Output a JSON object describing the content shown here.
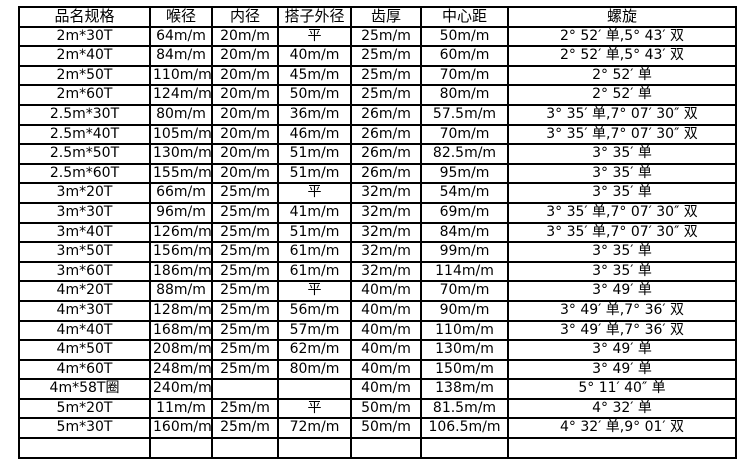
{
  "table": {
    "headers": [
      "品名规格",
      "喉径",
      "内径",
      "搭子外径",
      "齿厚",
      "中心距",
      "螺旋"
    ],
    "rows": [
      [
        "2m*30T",
        "64m/m",
        "20m/m",
        "平",
        "25m/m",
        "50m/m",
        "2° 52′ 单,5° 43′ 双"
      ],
      [
        "2m*40T",
        "84m/m",
        "20m/m",
        "40m/m",
        "25m/m",
        "60m/m",
        "2° 52′ 单,5° 43′ 双"
      ],
      [
        "2m*50T",
        "110m/m",
        "20m/m",
        "45m/m",
        "25m/m",
        "70m/m",
        "2° 52′ 单"
      ],
      [
        "2m*60T",
        "124m/m",
        "20m/m",
        "50m/m",
        "25m/m",
        "80m/m",
        "2° 52′ 单"
      ],
      [
        "2.5m*30T",
        "80m/m",
        "20m/m",
        "36m/m",
        "26m/m",
        "57.5m/m",
        "3° 35′ 单,7° 07′ 30″ 双"
      ],
      [
        "2.5m*40T",
        "105m/m",
        "20m/m",
        "46m/m",
        "26m/m",
        "70m/m",
        "3° 35′ 单,7° 07′ 30″ 双"
      ],
      [
        "2.5m*50T",
        "130m/m",
        "20m/m",
        "51m/m",
        "26m/m",
        "82.5m/m",
        "3° 35′ 单"
      ],
      [
        "2.5m*60T",
        "155m/m",
        "20m/m",
        "51m/m",
        "26m/m",
        "95m/m",
        "3° 35′ 单"
      ],
      [
        "3m*20T",
        "66m/m",
        "25m/m",
        "平",
        "32m/m",
        "54m/m",
        "3° 35′ 单"
      ],
      [
        "3m*30T",
        "96m/m",
        "25m/m",
        "41m/m",
        "32m/m",
        "69m/m",
        "3° 35′ 单,7° 07′ 30″ 双"
      ],
      [
        "3m*40T",
        "126m/m",
        "25m/m",
        "51m/m",
        "32m/m",
        "84m/m",
        "3° 35′ 单,7° 07′ 30″ 双"
      ],
      [
        "3m*50T",
        "156m/m",
        "25m/m",
        "61m/m",
        "32m/m",
        "99m/m",
        "3° 35′ 单"
      ],
      [
        "3m*60T",
        "186m/m",
        "25m/m",
        "61m/m",
        "32m/m",
        "114m/m",
        "3° 35′ 单"
      ],
      [
        "4m*20T",
        "88m/m",
        "25m/m",
        "平",
        "40m/m",
        "70m/m",
        "3° 49′ 单"
      ],
      [
        "4m*30T",
        "128m/m",
        "25m/m",
        "56m/m",
        "40m/m",
        "90m/m",
        "3° 49′ 单,7° 36′ 双"
      ],
      [
        "4m*40T",
        "168m/m",
        "25m/m",
        "57m/m",
        "40m/m",
        "110m/m",
        "3° 49′ 单,7° 36′ 双"
      ],
      [
        "4m*50T",
        "208m/m",
        "25m/m",
        "62m/m",
        "40m/m",
        "130m/m",
        "3° 49′ 单"
      ],
      [
        "4m*60T",
        "248m/m",
        "25m/m",
        "80m/m",
        "40m/m",
        "150m/m",
        "3° 49′ 单"
      ],
      [
        "4m*58T圈",
        "240m/m",
        "",
        "",
        "40m/m",
        "138m/m",
        "5° 11′ 40″ 单"
      ],
      [
        "5m*20T",
        "11m/m",
        "25m/m",
        "平",
        "50m/m",
        "81.5m/m",
        "4° 32′ 单"
      ],
      [
        "5m*30T",
        "160m/m",
        "25m/m",
        "72m/m",
        "50m/m",
        "106.5m/m",
        "4° 32′ 单,9° 01′ 双"
      ]
    ],
    "clipped_extra_row": [
      "",
      "",
      "",
      "",
      "",
      "",
      ""
    ]
  },
  "colors": {
    "background": "#ffffff",
    "border": "#000000",
    "text": "#000000"
  }
}
